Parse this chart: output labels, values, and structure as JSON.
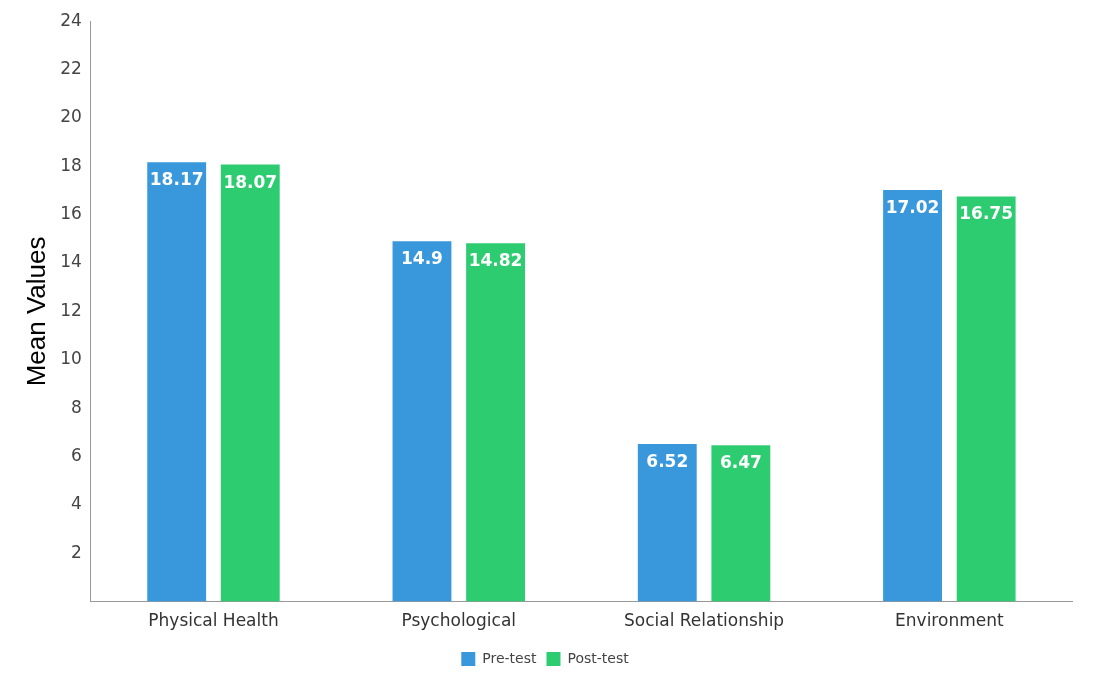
{
  "chart_data": {
    "type": "bar",
    "ylabel": "Mean Values",
    "categories": [
      "Physical Health",
      "Psychological",
      "Social Relationship",
      "Environment"
    ],
    "series": [
      {
        "name": "Pre-test",
        "color": "#3898db",
        "values": [
          18.17,
          14.9,
          6.52,
          17.02
        ]
      },
      {
        "name": "Post-test",
        "color": "#2ecc71",
        "values": [
          18.07,
          14.82,
          6.47,
          16.75
        ]
      }
    ],
    "ylim": [
      0,
      24
    ],
    "yticks": [
      {
        "value": 0,
        "label": null
      },
      2,
      4,
      6,
      8,
      10,
      12,
      14,
      16,
      18,
      20,
      22,
      24
    ],
    "grid": false,
    "legend": "bottom",
    "data_labels": true
  }
}
